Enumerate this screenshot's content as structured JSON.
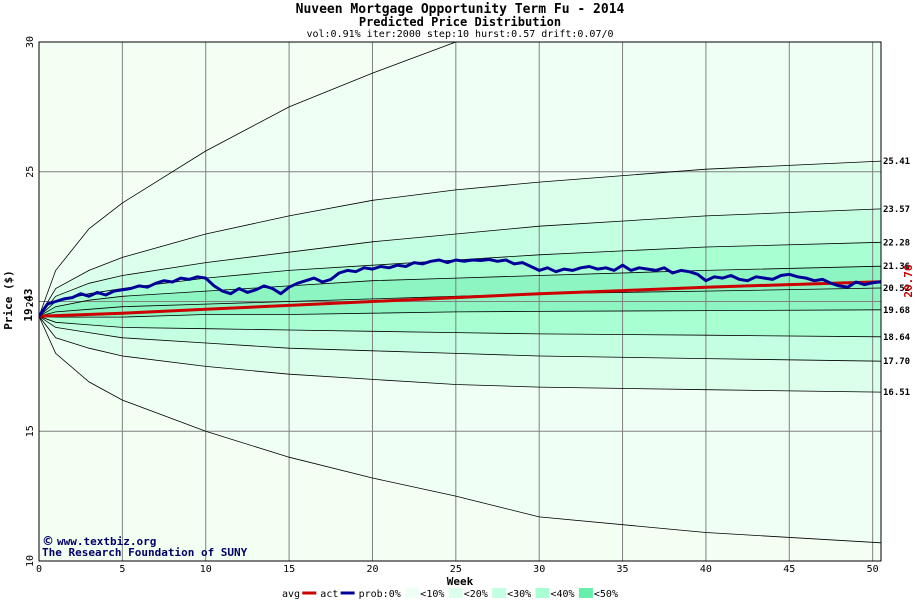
{
  "chart_data": {
    "type": "area",
    "title": "Nuveen Mortgage Opportunity Term Fu - 2014",
    "subtitle": "Predicted Price Distribution",
    "params": "vol:0.91% iter:2000 step:10 hurst:0.57 drift:0.07/0",
    "xlabel": "Week",
    "ylabel": "Price ($)",
    "xlim": [
      0,
      50.5
    ],
    "ylim": [
      10,
      30
    ],
    "x_ticks": [
      0,
      5,
      10,
      15,
      20,
      25,
      30,
      35,
      40,
      45,
      50
    ],
    "y_ticks": [
      10,
      15,
      20,
      25,
      30
    ],
    "grid": true,
    "start_price": "19.43",
    "actual_label": "20.76",
    "band_labels": [
      "25.41",
      "23.57",
      "22.28",
      "21.36",
      "20.52",
      "19.68",
      "18.64",
      "17.70",
      "16.51"
    ],
    "percentile_curves": [
      {
        "x": [
          0,
          1,
          3,
          5,
          10,
          15,
          20,
          25,
          30,
          40,
          50.5
        ],
        "y": [
          19.43,
          21.2,
          22.8,
          23.8,
          25.8,
          27.5,
          28.8,
          30.0,
          30.0,
          30.0,
          30.0
        ]
      },
      {
        "x": [
          0,
          1,
          3,
          5,
          10,
          15,
          20,
          25,
          30,
          40,
          50.5
        ],
        "y": [
          19.43,
          20.5,
          21.2,
          21.7,
          22.6,
          23.3,
          23.9,
          24.3,
          24.6,
          25.1,
          25.41
        ]
      },
      {
        "x": [
          0,
          1,
          3,
          5,
          10,
          15,
          20,
          25,
          30,
          40,
          50.5
        ],
        "y": [
          19.43,
          20.2,
          20.7,
          21.0,
          21.5,
          21.9,
          22.3,
          22.6,
          22.9,
          23.3,
          23.57
        ]
      },
      {
        "x": [
          0,
          1,
          3,
          5,
          10,
          15,
          20,
          25,
          30,
          40,
          50.5
        ],
        "y": [
          19.43,
          20.0,
          20.3,
          20.5,
          20.9,
          21.2,
          21.4,
          21.6,
          21.8,
          22.1,
          22.28
        ]
      },
      {
        "x": [
          0,
          1,
          3,
          5,
          10,
          15,
          20,
          25,
          30,
          40,
          50.5
        ],
        "y": [
          19.43,
          19.8,
          20.05,
          20.2,
          20.4,
          20.6,
          20.8,
          20.9,
          21.0,
          21.2,
          21.36
        ]
      },
      {
        "x": [
          0,
          1,
          3,
          5,
          10,
          15,
          20,
          25,
          30,
          40,
          50.5
        ],
        "y": [
          19.43,
          19.6,
          19.7,
          19.8,
          19.9,
          20.0,
          20.1,
          20.2,
          20.3,
          20.4,
          20.52
        ]
      },
      {
        "x": [
          0,
          1,
          3,
          5,
          10,
          15,
          20,
          25,
          30,
          40,
          50.5
        ],
        "y": [
          19.43,
          19.4,
          19.4,
          19.4,
          19.5,
          19.5,
          19.55,
          19.6,
          19.62,
          19.65,
          19.68
        ]
      },
      {
        "x": [
          0,
          1,
          3,
          5,
          10,
          15,
          20,
          25,
          30,
          40,
          50.5
        ],
        "y": [
          19.43,
          19.2,
          19.1,
          19.0,
          18.95,
          18.9,
          18.85,
          18.8,
          18.75,
          18.7,
          18.64
        ]
      },
      {
        "x": [
          0,
          1,
          3,
          5,
          10,
          15,
          20,
          25,
          30,
          40,
          50.5
        ],
        "y": [
          19.43,
          19.0,
          18.8,
          18.6,
          18.4,
          18.2,
          18.1,
          18.0,
          17.9,
          17.8,
          17.7
        ]
      },
      {
        "x": [
          0,
          1,
          3,
          5,
          10,
          15,
          20,
          25,
          30,
          40,
          50.5
        ],
        "y": [
          19.43,
          18.6,
          18.2,
          17.9,
          17.5,
          17.2,
          17.0,
          16.8,
          16.7,
          16.6,
          16.51
        ]
      },
      {
        "x": [
          0,
          1,
          3,
          5,
          10,
          15,
          20,
          25,
          30,
          40,
          50.5
        ],
        "y": [
          19.43,
          18.0,
          16.9,
          16.2,
          15.0,
          14.0,
          13.2,
          12.5,
          11.7,
          11.1,
          10.7
        ]
      }
    ],
    "series": [
      {
        "name": "avg",
        "color": "#cc0000",
        "x": [
          0,
          5,
          10,
          15,
          20,
          25,
          30,
          35,
          40,
          45,
          50.5
        ],
        "y": [
          19.43,
          19.55,
          19.7,
          19.85,
          20.0,
          20.15,
          20.3,
          20.42,
          20.55,
          20.65,
          20.76
        ]
      },
      {
        "name": "act",
        "color": "#000099",
        "x": [
          0,
          0.5,
          1,
          1.5,
          2,
          2.5,
          3,
          3.5,
          4,
          4.5,
          5,
          5.5,
          6,
          6.5,
          7,
          7.5,
          8,
          8.5,
          9,
          9.5,
          10,
          10.5,
          11,
          11.5,
          12,
          12.5,
          13,
          13.5,
          14,
          14.5,
          15,
          15.5,
          16,
          16.5,
          17,
          17.5,
          18,
          18.5,
          19,
          19.5,
          20,
          20.5,
          21,
          21.5,
          22,
          22.5,
          23,
          23.5,
          24,
          24.5,
          25,
          25.5,
          26,
          26.5,
          27,
          27.5,
          28,
          28.5,
          29,
          29.5,
          30,
          30.5,
          31,
          31.5,
          32,
          32.5,
          33,
          33.5,
          34,
          34.5,
          35,
          35.5,
          36,
          36.5,
          37,
          37.5,
          38,
          38.5,
          39,
          39.5,
          40,
          40.5,
          41,
          41.5,
          42,
          42.5,
          43,
          43.5,
          44,
          44.5,
          45,
          45.5,
          46,
          46.5,
          47,
          47.5,
          48,
          48.5,
          49,
          49.5,
          50,
          50.5
        ],
        "y": [
          19.43,
          19.9,
          20.0,
          20.1,
          20.15,
          20.3,
          20.2,
          20.35,
          20.25,
          20.4,
          20.45,
          20.5,
          20.6,
          20.55,
          20.7,
          20.8,
          20.75,
          20.9,
          20.85,
          20.95,
          20.9,
          20.6,
          20.4,
          20.3,
          20.5,
          20.35,
          20.45,
          20.6,
          20.5,
          20.3,
          20.55,
          20.7,
          20.8,
          20.9,
          20.75,
          20.85,
          21.1,
          21.2,
          21.15,
          21.3,
          21.25,
          21.35,
          21.3,
          21.4,
          21.35,
          21.5,
          21.45,
          21.55,
          21.6,
          21.5,
          21.6,
          21.55,
          21.6,
          21.58,
          21.62,
          21.55,
          21.6,
          21.45,
          21.5,
          21.35,
          21.2,
          21.3,
          21.15,
          21.25,
          21.2,
          21.3,
          21.35,
          21.25,
          21.3,
          21.2,
          21.4,
          21.2,
          21.3,
          21.25,
          21.2,
          21.3,
          21.1,
          21.2,
          21.15,
          21.05,
          20.8,
          20.95,
          20.9,
          21.0,
          20.85,
          20.8,
          20.95,
          20.9,
          20.85,
          21.0,
          21.05,
          20.95,
          20.9,
          20.8,
          20.85,
          20.7,
          20.6,
          20.55,
          20.75,
          20.65,
          20.72,
          20.76
        ]
      }
    ],
    "band_fill_colors": [
      "#effff6",
      "#dcffec",
      "#c4ffe1",
      "#a8ffd2",
      "#8cf5c2",
      "#66eeab"
    ],
    "legend": {
      "placement": "bottom",
      "items": [
        {
          "label": "avg",
          "type": "line",
          "color": "#cc0000"
        },
        {
          "label": "act",
          "type": "line",
          "color": "#000099"
        },
        {
          "label": "prob:0%",
          "type": "text"
        },
        {
          "label": "<10%",
          "type": "swatch",
          "color": "#effff6"
        },
        {
          "label": "<20%",
          "type": "swatch",
          "color": "#dcffec"
        },
        {
          "label": "<30%",
          "type": "swatch",
          "color": "#c4ffe1"
        },
        {
          "label": "<40%",
          "type": "swatch",
          "color": "#a8ffd2"
        },
        {
          "label": "<50%",
          "type": "swatch",
          "color": "#66eeab"
        }
      ]
    }
  },
  "credits": {
    "line1": "www.textbiz.org",
    "line2": "The Research Foundation of SUNY",
    "copyright_symbol": "©"
  }
}
